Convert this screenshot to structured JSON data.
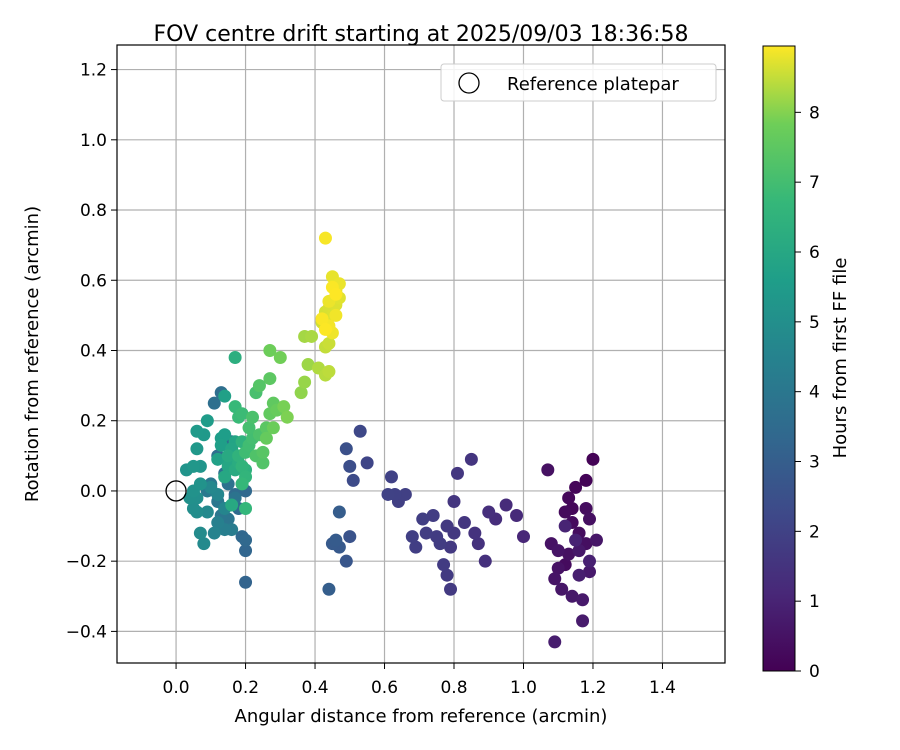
{
  "chart_data": {
    "type": "scatter",
    "title": "FOV centre drift starting at 2025/09/03 18:36:58",
    "xlabel": "Angular distance from reference (arcmin)",
    "ylabel": "Rotation from reference (arcmin)",
    "xlim": [
      -0.17,
      1.58
    ],
    "ylim": [
      -0.49,
      1.27
    ],
    "x_ticks": [
      0.0,
      0.2,
      0.4,
      0.6,
      0.8,
      1.0,
      1.2,
      1.4
    ],
    "y_ticks": [
      -0.4,
      -0.2,
      0.0,
      0.2,
      0.4,
      0.6,
      0.8,
      1.0,
      1.2
    ],
    "x_tick_labels": [
      "0.0",
      "0.2",
      "0.4",
      "0.6",
      "0.8",
      "1.0",
      "1.2",
      "1.4"
    ],
    "y_tick_labels": [
      "−0.4",
      "−0.2",
      "0.0",
      "0.2",
      "0.4",
      "0.6",
      "0.8",
      "1.0",
      "1.2"
    ],
    "grid": true,
    "legend": {
      "position": "top-right",
      "entries": [
        "Reference platepar"
      ]
    },
    "reference_point": {
      "x": 0.0,
      "y": 0.0
    },
    "colorbar": {
      "label": "Hours from first FF file",
      "colormap": "viridis",
      "range": [
        0,
        8.95
      ],
      "ticks": [
        0,
        1,
        2,
        3,
        4,
        5,
        6,
        7,
        8
      ],
      "tick_labels": [
        "0",
        "1",
        "2",
        "3",
        "4",
        "5",
        "6",
        "7",
        "8"
      ]
    },
    "points_columns": [
      "x",
      "y",
      "hours"
    ],
    "points": [
      [
        1.2,
        0.09,
        0.05
      ],
      [
        1.18,
        0.03,
        0.1
      ],
      [
        1.15,
        0.01,
        0.15
      ],
      [
        1.13,
        -0.02,
        0.2
      ],
      [
        1.12,
        -0.06,
        0.25
      ],
      [
        1.14,
        -0.09,
        0.3
      ],
      [
        1.16,
        -0.12,
        0.35
      ],
      [
        1.18,
        -0.15,
        0.4
      ],
      [
        1.13,
        -0.18,
        0.45
      ],
      [
        1.1,
        -0.22,
        0.5
      ],
      [
        1.09,
        -0.25,
        0.55
      ],
      [
        1.11,
        -0.28,
        0.6
      ],
      [
        1.14,
        -0.3,
        0.65
      ],
      [
        1.17,
        -0.31,
        0.7
      ],
      [
        1.17,
        -0.37,
        0.75
      ],
      [
        1.09,
        -0.43,
        0.8
      ],
      [
        1.16,
        -0.24,
        0.85
      ],
      [
        1.19,
        -0.2,
        0.9
      ],
      [
        1.15,
        -0.14,
        0.95
      ],
      [
        1.12,
        -0.1,
        1.0
      ],
      [
        1.07,
        0.06,
        0.45
      ],
      [
        1.08,
        -0.15,
        0.5
      ],
      [
        1.1,
        -0.17,
        0.55
      ],
      [
        1.18,
        -0.05,
        0.35
      ],
      [
        1.19,
        -0.08,
        0.4
      ],
      [
        1.21,
        -0.14,
        0.6
      ],
      [
        1.19,
        -0.23,
        0.7
      ],
      [
        1.12,
        -0.21,
        0.3
      ],
      [
        1.14,
        -0.05,
        0.2
      ],
      [
        1.16,
        -0.17,
        0.65
      ],
      [
        1.0,
        -0.13,
        1.1
      ],
      [
        0.98,
        -0.07,
        1.2
      ],
      [
        0.95,
        -0.04,
        1.25
      ],
      [
        0.92,
        -0.08,
        1.3
      ],
      [
        0.9,
        -0.06,
        1.35
      ],
      [
        0.89,
        -0.2,
        1.4
      ],
      [
        0.87,
        -0.15,
        1.45
      ],
      [
        0.86,
        -0.12,
        1.5
      ],
      [
        0.85,
        0.09,
        1.55
      ],
      [
        0.83,
        -0.09,
        1.6
      ],
      [
        0.81,
        0.05,
        1.62
      ],
      [
        0.8,
        -0.12,
        1.65
      ],
      [
        0.79,
        -0.16,
        1.68
      ],
      [
        0.78,
        -0.1,
        1.7
      ],
      [
        0.79,
        -0.28,
        1.72
      ],
      [
        0.78,
        -0.24,
        1.74
      ],
      [
        0.77,
        -0.21,
        1.76
      ],
      [
        0.76,
        -0.15,
        1.78
      ],
      [
        0.75,
        -0.13,
        1.8
      ],
      [
        0.74,
        -0.07,
        1.82
      ],
      [
        0.72,
        -0.12,
        1.84
      ],
      [
        0.71,
        -0.08,
        1.86
      ],
      [
        0.69,
        -0.16,
        1.88
      ],
      [
        0.68,
        -0.13,
        1.9
      ],
      [
        0.66,
        -0.01,
        1.92
      ],
      [
        0.64,
        -0.03,
        1.94
      ],
      [
        0.63,
        -0.01,
        1.96
      ],
      [
        0.62,
        0.04,
        1.98
      ],
      [
        0.61,
        -0.01,
        2.0
      ],
      [
        0.8,
        -0.03,
        1.58
      ],
      [
        0.55,
        0.08,
        2.1
      ],
      [
        0.53,
        0.17,
        2.2
      ],
      [
        0.51,
        0.03,
        2.3
      ],
      [
        0.5,
        0.07,
        2.4
      ],
      [
        0.49,
        0.12,
        2.5
      ],
      [
        0.5,
        -0.13,
        2.6
      ],
      [
        0.49,
        -0.2,
        2.7
      ],
      [
        0.47,
        -0.16,
        2.8
      ],
      [
        0.46,
        -0.14,
        2.9
      ],
      [
        0.44,
        -0.28,
        3.0
      ],
      [
        0.47,
        -0.06,
        2.95
      ],
      [
        0.45,
        -0.15,
        2.85
      ],
      [
        0.2,
        -0.26,
        3.2
      ],
      [
        0.2,
        -0.17,
        3.3
      ],
      [
        0.19,
        -0.13,
        3.35
      ],
      [
        0.2,
        -0.14,
        3.4
      ],
      [
        0.18,
        -0.05,
        3.45
      ],
      [
        0.17,
        -0.01,
        3.5
      ],
      [
        0.16,
        0.14,
        3.55
      ],
      [
        0.13,
        0.28,
        3.6
      ],
      [
        0.11,
        0.25,
        3.65
      ],
      [
        0.12,
        0.1,
        3.7
      ],
      [
        0.14,
        0.05,
        3.75
      ],
      [
        0.15,
        0.02,
        3.8
      ],
      [
        0.17,
        -0.02,
        3.85
      ],
      [
        0.15,
        -0.08,
        3.9
      ],
      [
        0.13,
        -0.07,
        3.95
      ],
      [
        0.12,
        -0.03,
        4.0
      ],
      [
        0.1,
        0.02,
        4.05
      ],
      [
        0.09,
        0.0,
        4.1
      ],
      [
        0.2,
        0.0,
        3.4
      ],
      [
        0.19,
        0.02,
        3.5
      ],
      [
        0.16,
        -0.11,
        4.2
      ],
      [
        0.14,
        -0.11,
        4.3
      ],
      [
        0.12,
        -0.09,
        4.4
      ],
      [
        0.11,
        -0.12,
        4.5
      ],
      [
        0.14,
        -0.05,
        4.6
      ],
      [
        0.12,
        -0.01,
        4.65
      ],
      [
        0.1,
        0.01,
        4.7
      ],
      [
        0.09,
        -0.06,
        4.75
      ],
      [
        0.08,
        -0.15,
        4.8
      ],
      [
        0.07,
        -0.12,
        4.85
      ],
      [
        0.06,
        -0.06,
        4.9
      ],
      [
        0.05,
        -0.05,
        4.95
      ],
      [
        0.06,
        -0.02,
        5.0
      ],
      [
        0.04,
        -0.02,
        5.05
      ],
      [
        0.05,
        0.0,
        5.1
      ],
      [
        0.07,
        0.02,
        5.15
      ],
      [
        0.03,
        0.06,
        5.2
      ],
      [
        0.07,
        0.07,
        5.25
      ],
      [
        0.05,
        0.07,
        5.3
      ],
      [
        0.06,
        0.12,
        5.35
      ],
      [
        0.08,
        0.16,
        5.4
      ],
      [
        0.06,
        0.17,
        5.45
      ],
      [
        0.09,
        0.2,
        5.5
      ],
      [
        0.13,
        0.15,
        5.55
      ],
      [
        0.14,
        0.16,
        5.6
      ],
      [
        0.13,
        0.13,
        5.65
      ],
      [
        0.14,
        0.27,
        5.7
      ],
      [
        0.12,
        0.09,
        5.75
      ],
      [
        0.15,
        0.09,
        5.8
      ],
      [
        0.17,
        0.14,
        5.85
      ],
      [
        0.16,
        0.12,
        5.9
      ],
      [
        0.15,
        0.07,
        5.95
      ],
      [
        0.14,
        0.04,
        6.0
      ],
      [
        0.16,
        -0.04,
        6.05
      ],
      [
        0.15,
        0.1,
        6.1
      ],
      [
        0.17,
        0.06,
        6.15
      ],
      [
        0.18,
        0.08,
        6.2
      ],
      [
        0.17,
        0.38,
        6.3
      ],
      [
        0.2,
        0.06,
        6.4
      ],
      [
        0.19,
        0.14,
        6.45
      ],
      [
        0.18,
        0.1,
        6.5
      ],
      [
        0.19,
        0.07,
        6.55
      ],
      [
        0.2,
        0.04,
        6.6
      ],
      [
        0.2,
        -0.05,
        6.65
      ],
      [
        0.19,
        0.02,
        6.7
      ],
      [
        0.17,
        0.24,
        6.75
      ],
      [
        0.18,
        0.21,
        6.8
      ],
      [
        0.19,
        0.22,
        6.85
      ],
      [
        0.2,
        0.11,
        6.9
      ],
      [
        0.21,
        0.13,
        6.95
      ],
      [
        0.22,
        0.15,
        7.0
      ],
      [
        0.21,
        0.18,
        7.05
      ],
      [
        0.23,
        0.28,
        7.1
      ],
      [
        0.22,
        0.21,
        7.15
      ],
      [
        0.24,
        0.16,
        7.2
      ],
      [
        0.23,
        0.1,
        7.25
      ],
      [
        0.25,
        0.08,
        7.3
      ],
      [
        0.24,
        0.3,
        7.35
      ],
      [
        0.25,
        0.11,
        7.4
      ],
      [
        0.26,
        0.18,
        7.45
      ],
      [
        0.27,
        0.32,
        7.5
      ],
      [
        0.28,
        0.25,
        7.55
      ],
      [
        0.27,
        0.22,
        7.6
      ],
      [
        0.26,
        0.15,
        7.65
      ],
      [
        0.29,
        0.23,
        7.7
      ],
      [
        0.28,
        0.18,
        7.75
      ],
      [
        0.27,
        0.4,
        7.8
      ],
      [
        0.3,
        0.38,
        7.85
      ],
      [
        0.31,
        0.24,
        7.9
      ],
      [
        0.32,
        0.21,
        7.95
      ],
      [
        0.36,
        0.28,
        8.1
      ],
      [
        0.37,
        0.31,
        8.15
      ],
      [
        0.38,
        0.36,
        8.2
      ],
      [
        0.37,
        0.44,
        8.25
      ],
      [
        0.39,
        0.44,
        8.3
      ],
      [
        0.41,
        0.35,
        8.35
      ],
      [
        0.43,
        0.33,
        8.4
      ],
      [
        0.44,
        0.34,
        8.45
      ],
      [
        0.43,
        0.41,
        8.5
      ],
      [
        0.44,
        0.42,
        8.55
      ],
      [
        0.42,
        0.48,
        8.6
      ],
      [
        0.43,
        0.51,
        8.62
      ],
      [
        0.44,
        0.52,
        8.65
      ],
      [
        0.45,
        0.5,
        8.68
      ],
      [
        0.46,
        0.53,
        8.7
      ],
      [
        0.47,
        0.55,
        8.72
      ],
      [
        0.46,
        0.57,
        8.75
      ],
      [
        0.45,
        0.61,
        8.78
      ],
      [
        0.47,
        0.59,
        8.8
      ],
      [
        0.44,
        0.54,
        8.82
      ],
      [
        0.45,
        0.45,
        8.84
      ],
      [
        0.46,
        0.5,
        8.86
      ],
      [
        0.44,
        0.47,
        8.88
      ],
      [
        0.43,
        0.72,
        8.9
      ],
      [
        0.42,
        0.49,
        8.92
      ],
      [
        0.45,
        0.58,
        8.93
      ],
      [
        0.43,
        0.46,
        8.94
      ],
      [
        0.46,
        0.56,
        8.95
      ]
    ]
  }
}
